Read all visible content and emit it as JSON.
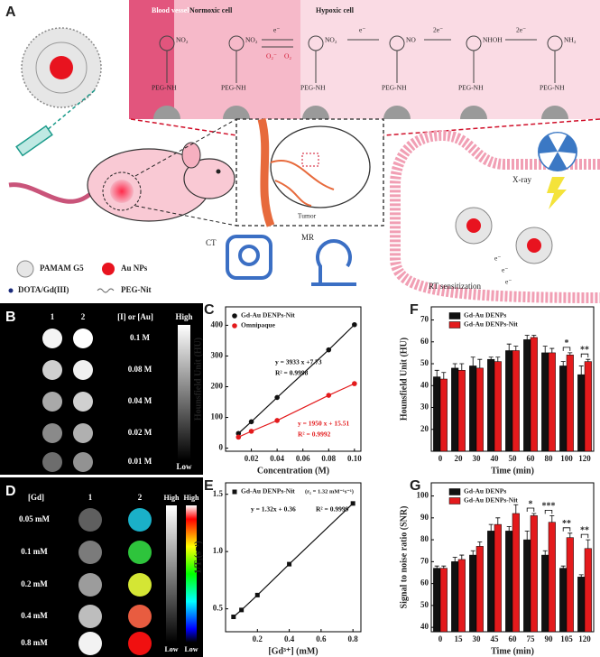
{
  "panel_a": {
    "label": "A",
    "compartments": [
      "Blood vessel",
      "Normoxic cell",
      "Hypoxic cell"
    ],
    "electrons": [
      "e⁻",
      "e⁻",
      "2e⁻",
      "2e⁻"
    ],
    "oxygen": [
      "O₂⁻",
      "O₂"
    ],
    "groups": [
      "NO₂",
      "NO₂",
      "NO₂",
      "NO",
      "NHOH",
      "NH₂"
    ],
    "linkers": [
      "PEG-NH",
      "PEG-NH",
      "PEG-NH",
      "PEG-NH",
      "PEG-NH",
      "PEG-NH"
    ],
    "tumor": "Tumor",
    "ct": "CT",
    "mr": "MR",
    "xray": "X-ray",
    "rt": "RT sensitization",
    "radiation_electrons": [
      "e⁻",
      "e⁻",
      "e⁻"
    ],
    "legend": [
      "PAMAM G5",
      "Au NPs",
      "DOTA/Gd(III)",
      "PEG-Nit"
    ]
  },
  "panel_b": {
    "label": "B",
    "columns": [
      "1",
      "2"
    ],
    "header": "[I] or [Au]",
    "rows": [
      "0.1 M",
      "0.08 M",
      "0.04 M",
      "0.02 M",
      "0.01 M"
    ],
    "scale": [
      "High",
      "Low"
    ]
  },
  "panel_d": {
    "label": "D",
    "header": "[Gd]",
    "columns": [
      "1",
      "2"
    ],
    "rows": [
      "0.05 mM",
      "0.1 mM",
      "0.2 mM",
      "0.4 mM",
      "0.8 mM"
    ],
    "scale_top": [
      "High",
      "High"
    ],
    "scale_bottom": [
      "Low",
      "Low"
    ]
  },
  "chart_data": [
    {
      "type": "line",
      "label": "C",
      "x": [
        0.01,
        0.02,
        0.04,
        0.08,
        0.1
      ],
      "xlim": [
        0,
        0.105
      ],
      "xticks": [
        0.02,
        0.04,
        0.06,
        0.08,
        {
          "value": 0.1,
          "label": "0.10"
        }
      ],
      "ylim": [
        -10,
        460
      ],
      "yticks": [
        0,
        100,
        200,
        300,
        400
      ],
      "x_label": "Concentration (M)",
      "y_label": "Hounsfield Unit (HU)",
      "legend": "upper left",
      "marker": "circle",
      "series": [
        {
          "name": "Gd-Au DENPs-Nit",
          "color": "#111111",
          "values": [
            48,
            86,
            165,
            320,
            402
          ],
          "fit_label": [
            "y = 3933 x +7.73",
            "R² = 0.9998"
          ]
        },
        {
          "name": "Omnipaque",
          "color": "#e31a1c",
          "values": [
            36,
            55,
            90,
            172,
            210
          ],
          "fit_label": [
            "y = 1950 x + 15.51",
            "R² = 0.9992"
          ]
        }
      ]
    },
    {
      "type": "line",
      "label": "E",
      "x": [
        0.05,
        0.1,
        0.2,
        0.4,
        0.8
      ],
      "xlim": [
        0,
        0.85
      ],
      "xticks": [
        0.2,
        0.4,
        0.6,
        0.8
      ],
      "ylim": [
        0.3,
        1.6
      ],
      "yticks": [
        0.5,
        {
          "value": 1,
          "label": "1.0"
        },
        1.5
      ],
      "x_label": "[Gd³⁺] (mM)",
      "y_label": "1/T₁(s⁻¹)",
      "legend": "upper left",
      "marker": "square",
      "note": "(r₁ = 1.32 mM⁻¹s⁻¹)",
      "series": [
        {
          "name": "Gd-Au DENPs-Nit",
          "color": "#111111",
          "values": [
            0.43,
            0.49,
            0.62,
            0.89,
            1.42
          ],
          "fit_label": [
            "y = 1.32x + 0.36",
            "R² = 0.9999"
          ]
        }
      ]
    },
    {
      "type": "bar",
      "label": "F",
      "categories": [
        "0",
        "20",
        "30",
        "40",
        "50",
        "60",
        "80",
        "100",
        "120"
      ],
      "ylim": [
        10,
        76
      ],
      "yticks": [
        20,
        30,
        40,
        50,
        60,
        70
      ],
      "x_label": "Time (min)",
      "y_label": "Hounsfield Unit (HU)",
      "legend": "upper left",
      "series": [
        {
          "name": "Gd-Au DENPs",
          "color": "#111111",
          "values": [
            44,
            48,
            49,
            52,
            56,
            61,
            55,
            49,
            45
          ],
          "errors": [
            3,
            2,
            4,
            1,
            3,
            2,
            3,
            2,
            4
          ]
        },
        {
          "name": "Gd-Au DENPs-Nit",
          "color": "#e31a1c",
          "values": [
            43,
            47,
            48,
            51,
            56,
            62,
            55,
            54,
            51
          ],
          "errors": [
            3,
            3,
            4,
            2,
            2,
            1,
            2,
            1,
            1
          ]
        }
      ],
      "significance": [
        null,
        null,
        null,
        null,
        null,
        null,
        null,
        "*",
        "**"
      ]
    },
    {
      "type": "bar",
      "label": "G",
      "categories": [
        "0",
        "15",
        "30",
        "45",
        "60",
        "75",
        "90",
        "105",
        "120"
      ],
      "ylim": [
        38,
        106
      ],
      "yticks": [
        40,
        50,
        60,
        70,
        80,
        90,
        100
      ],
      "x_label": "Time (min)",
      "y_label": "Signal to noise ratio (SNR)",
      "legend": "upper left",
      "series": [
        {
          "name": "Gd-Au DENPs",
          "color": "#111111",
          "values": [
            67,
            70,
            73,
            84,
            84,
            80,
            73,
            67,
            63
          ],
          "errors": [
            1,
            2,
            2,
            3,
            2,
            4,
            2,
            1,
            1
          ]
        },
        {
          "name": "Gd-Au DENPs-Nit",
          "color": "#e31a1c",
          "values": [
            67,
            71,
            77,
            87,
            92,
            91,
            88,
            81,
            76
          ],
          "errors": [
            1,
            2,
            2,
            3,
            4,
            1,
            3,
            2,
            4
          ]
        }
      ],
      "significance": [
        null,
        null,
        null,
        null,
        null,
        "*",
        "***",
        "**",
        "**"
      ]
    }
  ]
}
